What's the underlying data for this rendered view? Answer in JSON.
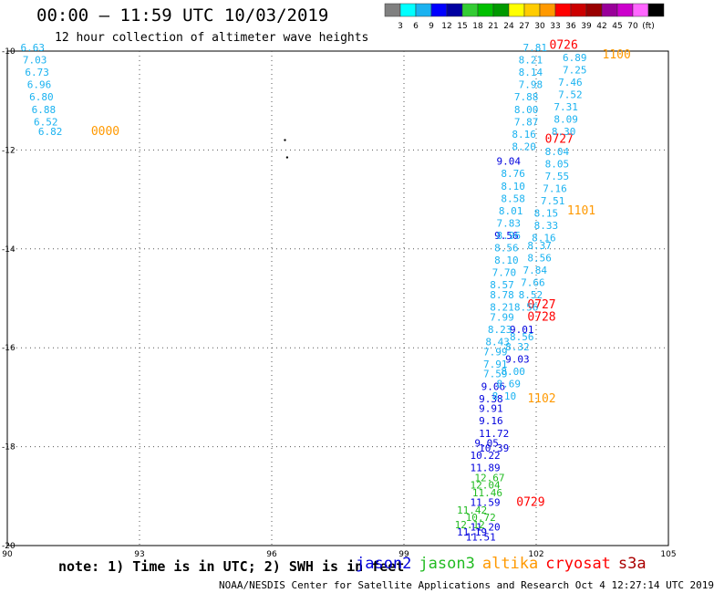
{
  "header": {
    "title": "00:00 – 11:59 UTC 10/03/2019",
    "subtitle": "12 hour collection of altimeter wave heights"
  },
  "colorbar": {
    "colors": [
      "#808080",
      "#00ffff",
      "#1ab2f0",
      "#0000ff",
      "#0000a0",
      "#33cc33",
      "#00c000",
      "#009900",
      "#ffff00",
      "#ffcc00",
      "#ff9900",
      "#ff0000",
      "#cc0000",
      "#990000",
      "#990099",
      "#cc00cc",
      "#ff66ff",
      "#000000"
    ],
    "labels": [
      "3",
      "6",
      "9",
      "12",
      "15",
      "18",
      "21",
      "24",
      "27",
      "30",
      "33",
      "36",
      "39",
      "42",
      "45",
      "70",
      "(ft)"
    ]
  },
  "chart_data": {
    "type": "scatter",
    "x_ticks": [
      "90",
      "93",
      "96",
      "99",
      "102",
      "105"
    ],
    "y_ticks": [
      "-10",
      "-12",
      "-14",
      "-16",
      "-18",
      "-20"
    ],
    "xlim": [
      90,
      105
    ],
    "ylim": [
      -20,
      -10
    ],
    "grid": true,
    "series": [
      {
        "name": "jason2",
        "color": "#0000dd",
        "points": [
          {
            "lon": 101.1,
            "lat": -12.3,
            "label": "9.04"
          },
          {
            "lon": 101.05,
            "lat": -13.8,
            "label": "9.56"
          },
          {
            "lon": 101.4,
            "lat": -15.7,
            "label": "9.01"
          },
          {
            "lon": 101.3,
            "lat": -16.3,
            "label": "9.03"
          },
          {
            "lon": 100.75,
            "lat": -16.85,
            "label": "9.06"
          },
          {
            "lon": 100.7,
            "lat": -17.1,
            "label": "9.38"
          },
          {
            "lon": 100.7,
            "lat": -17.3,
            "label": "9.91"
          },
          {
            "lon": 100.7,
            "lat": -17.55,
            "label": "9.16"
          },
          {
            "lon": 100.7,
            "lat": -17.8,
            "label": "11.72"
          },
          {
            "lon": 100.6,
            "lat": -18.0,
            "label": "9.05"
          },
          {
            "lon": 100.7,
            "lat": -18.1,
            "label": "10.39"
          },
          {
            "lon": 100.5,
            "lat": -18.25,
            "label": "10.22"
          },
          {
            "lon": 100.5,
            "lat": -18.5,
            "label": "11.89"
          },
          {
            "lon": 100.5,
            "lat": -19.2,
            "label": "11.59"
          },
          {
            "lon": 100.5,
            "lat": -19.7,
            "label": "11.20"
          },
          {
            "lon": 100.2,
            "lat": -19.8,
            "label": "11.19"
          },
          {
            "lon": 100.4,
            "lat": -19.9,
            "label": "11.51"
          }
        ]
      },
      {
        "name": "jason3",
        "color": "#22bb22",
        "points": [
          {
            "lon": 100.6,
            "lat": -18.7,
            "label": "12.67"
          },
          {
            "lon": 100.5,
            "lat": -18.85,
            "label": "12.04"
          },
          {
            "lon": 100.55,
            "lat": -19.0,
            "label": "11.46"
          },
          {
            "lon": 100.2,
            "lat": -19.35,
            "label": "11.42"
          },
          {
            "lon": 100.4,
            "lat": -19.5,
            "label": "10.72"
          },
          {
            "lon": 100.15,
            "lat": -19.65,
            "label": "12.12"
          }
        ]
      },
      {
        "name": "altika",
        "color": "#ff9900",
        "points": [
          {
            "lon": 91.9,
            "lat": -11.7,
            "label": "0000"
          },
          {
            "lon": 103.5,
            "lat": -10.15,
            "label": "1100"
          },
          {
            "lon": 102.7,
            "lat": -13.3,
            "label": "1101"
          },
          {
            "lon": 101.8,
            "lat": -17.1,
            "label": "1102"
          }
        ]
      },
      {
        "name": "cryosat",
        "color": "#ff0000",
        "points": [
          {
            "lon": 102.3,
            "lat": -9.95,
            "label": "0726"
          },
          {
            "lon": 102.2,
            "lat": -11.85,
            "label": "0727"
          },
          {
            "lon": 101.8,
            "lat": -15.2,
            "label": "0727"
          },
          {
            "lon": 101.8,
            "lat": -15.45,
            "label": "0728"
          },
          {
            "lon": 101.55,
            "lat": -19.2,
            "label": "0729"
          }
        ]
      },
      {
        "name": "s3a",
        "color": "#aa0000",
        "points": []
      },
      {
        "name": "other",
        "color": "#1ab2f0",
        "points": [
          {
            "lon": 90.3,
            "lat": -10.0,
            "label": "6.63"
          },
          {
            "lon": 90.35,
            "lat": -10.25,
            "label": "7.03"
          },
          {
            "lon": 90.4,
            "lat": -10.5,
            "label": "6.73"
          },
          {
            "lon": 90.45,
            "lat": -10.75,
            "label": "6.96"
          },
          {
            "lon": 90.5,
            "lat": -11.0,
            "label": "6.80"
          },
          {
            "lon": 90.55,
            "lat": -11.25,
            "label": "6.88"
          },
          {
            "lon": 90.6,
            "lat": -11.5,
            "label": "6.52"
          },
          {
            "lon": 90.7,
            "lat": -11.7,
            "label": "6.82"
          },
          {
            "lon": 101.7,
            "lat": -10.0,
            "label": "7.81"
          },
          {
            "lon": 102.6,
            "lat": -10.2,
            "label": "6.89"
          },
          {
            "lon": 101.6,
            "lat": -10.25,
            "label": "8.21"
          },
          {
            "lon": 102.6,
            "lat": -10.45,
            "label": "7.25"
          },
          {
            "lon": 101.6,
            "lat": -10.5,
            "label": "8.14"
          },
          {
            "lon": 102.5,
            "lat": -10.7,
            "label": "7.46"
          },
          {
            "lon": 101.6,
            "lat": -10.75,
            "label": "7.98"
          },
          {
            "lon": 102.5,
            "lat": -10.95,
            "label": "7.52"
          },
          {
            "lon": 101.5,
            "lat": -11.0,
            "label": "7.88"
          },
          {
            "lon": 102.4,
            "lat": -11.2,
            "label": "7.31"
          },
          {
            "lon": 101.5,
            "lat": -11.25,
            "label": "8.00"
          },
          {
            "lon": 102.4,
            "lat": -11.45,
            "label": "8.09"
          },
          {
            "lon": 101.5,
            "lat": -11.5,
            "label": "7.87"
          },
          {
            "lon": 102.35,
            "lat": -11.7,
            "label": "8.30"
          },
          {
            "lon": 101.45,
            "lat": -11.75,
            "label": "8.16"
          },
          {
            "lon": 101.45,
            "lat": -12.0,
            "label": "8.20"
          },
          {
            "lon": 102.2,
            "lat": -12.1,
            "label": "8.04"
          },
          {
            "lon": 102.2,
            "lat": -12.35,
            "label": "8.05"
          },
          {
            "lon": 101.2,
            "lat": -12.55,
            "label": "8.76"
          },
          {
            "lon": 102.2,
            "lat": -12.6,
            "label": "7.55"
          },
          {
            "lon": 101.2,
            "lat": -12.8,
            "label": "8.10"
          },
          {
            "lon": 102.15,
            "lat": -12.85,
            "label": "7.16"
          },
          {
            "lon": 101.2,
            "lat": -13.05,
            "label": "8.58"
          },
          {
            "lon": 102.1,
            "lat": -13.1,
            "label": "7.51"
          },
          {
            "lon": 101.15,
            "lat": -13.3,
            "label": "8.01"
          },
          {
            "lon": 101.95,
            "lat": -13.35,
            "label": "8.15"
          },
          {
            "lon": 101.1,
            "lat": -13.55,
            "label": "7.83"
          },
          {
            "lon": 101.95,
            "lat": -13.6,
            "label": "8.33"
          },
          {
            "lon": 101.1,
            "lat": -13.8,
            "label": "8.96"
          },
          {
            "lon": 101.9,
            "lat": -13.85,
            "label": "8.16"
          },
          {
            "lon": 101.05,
            "lat": -14.05,
            "label": "8.56"
          },
          {
            "lon": 101.8,
            "lat": -14.0,
            "label": "8.37"
          },
          {
            "lon": 101.05,
            "lat": -14.3,
            "label": "8.10"
          },
          {
            "lon": 101.8,
            "lat": -14.25,
            "label": "8.56"
          },
          {
            "lon": 101.0,
            "lat": -14.55,
            "label": "7.70"
          },
          {
            "lon": 101.7,
            "lat": -14.5,
            "label": "7.84"
          },
          {
            "lon": 100.95,
            "lat": -14.8,
            "label": "8.57"
          },
          {
            "lon": 101.65,
            "lat": -14.75,
            "label": "7.66"
          },
          {
            "lon": 100.95,
            "lat": -15.0,
            "label": "8.78"
          },
          {
            "lon": 101.6,
            "lat": -15.0,
            "label": "8.52"
          },
          {
            "lon": 100.95,
            "lat": -15.25,
            "label": "8.21"
          },
          {
            "lon": 101.5,
            "lat": -15.25,
            "label": "8.56"
          },
          {
            "lon": 100.95,
            "lat": -15.45,
            "label": "7.99"
          },
          {
            "lon": 100.9,
            "lat": -15.7,
            "label": "8.23"
          },
          {
            "lon": 101.4,
            "lat": -15.85,
            "label": "8.56"
          },
          {
            "lon": 100.85,
            "lat": -15.95,
            "label": "8.43"
          },
          {
            "lon": 101.3,
            "lat": -16.05,
            "label": "8.32"
          },
          {
            "lon": 100.8,
            "lat": -16.15,
            "label": "7.99"
          },
          {
            "lon": 100.8,
            "lat": -16.4,
            "label": "7.91"
          },
          {
            "lon": 101.2,
            "lat": -16.55,
            "label": "8.00"
          },
          {
            "lon": 100.8,
            "lat": -16.6,
            "label": "7.59"
          },
          {
            "lon": 101.1,
            "lat": -16.8,
            "label": "8.69"
          },
          {
            "lon": 101.0,
            "lat": -17.05,
            "label": "8.10"
          }
        ]
      }
    ]
  },
  "markers": [
    {
      "lon": 96.3,
      "lat": -11.8
    },
    {
      "lon": 96.35,
      "lat": -12.15
    }
  ],
  "note": "note: 1) Time is in UTC; 2) SWH is in feet",
  "legend": [
    {
      "label": "jason2",
      "color": "#0000dd"
    },
    {
      "label": "jason3",
      "color": "#22bb22"
    },
    {
      "label": "altika",
      "color": "#ff9900"
    },
    {
      "label": "cryosat",
      "color": "#ff0000"
    },
    {
      "label": "s3a",
      "color": "#aa0000"
    }
  ],
  "footer": "NOAA/NESDIS Center for Satellite Applications and Research   Oct  4 12:27:14 UTC 2019"
}
